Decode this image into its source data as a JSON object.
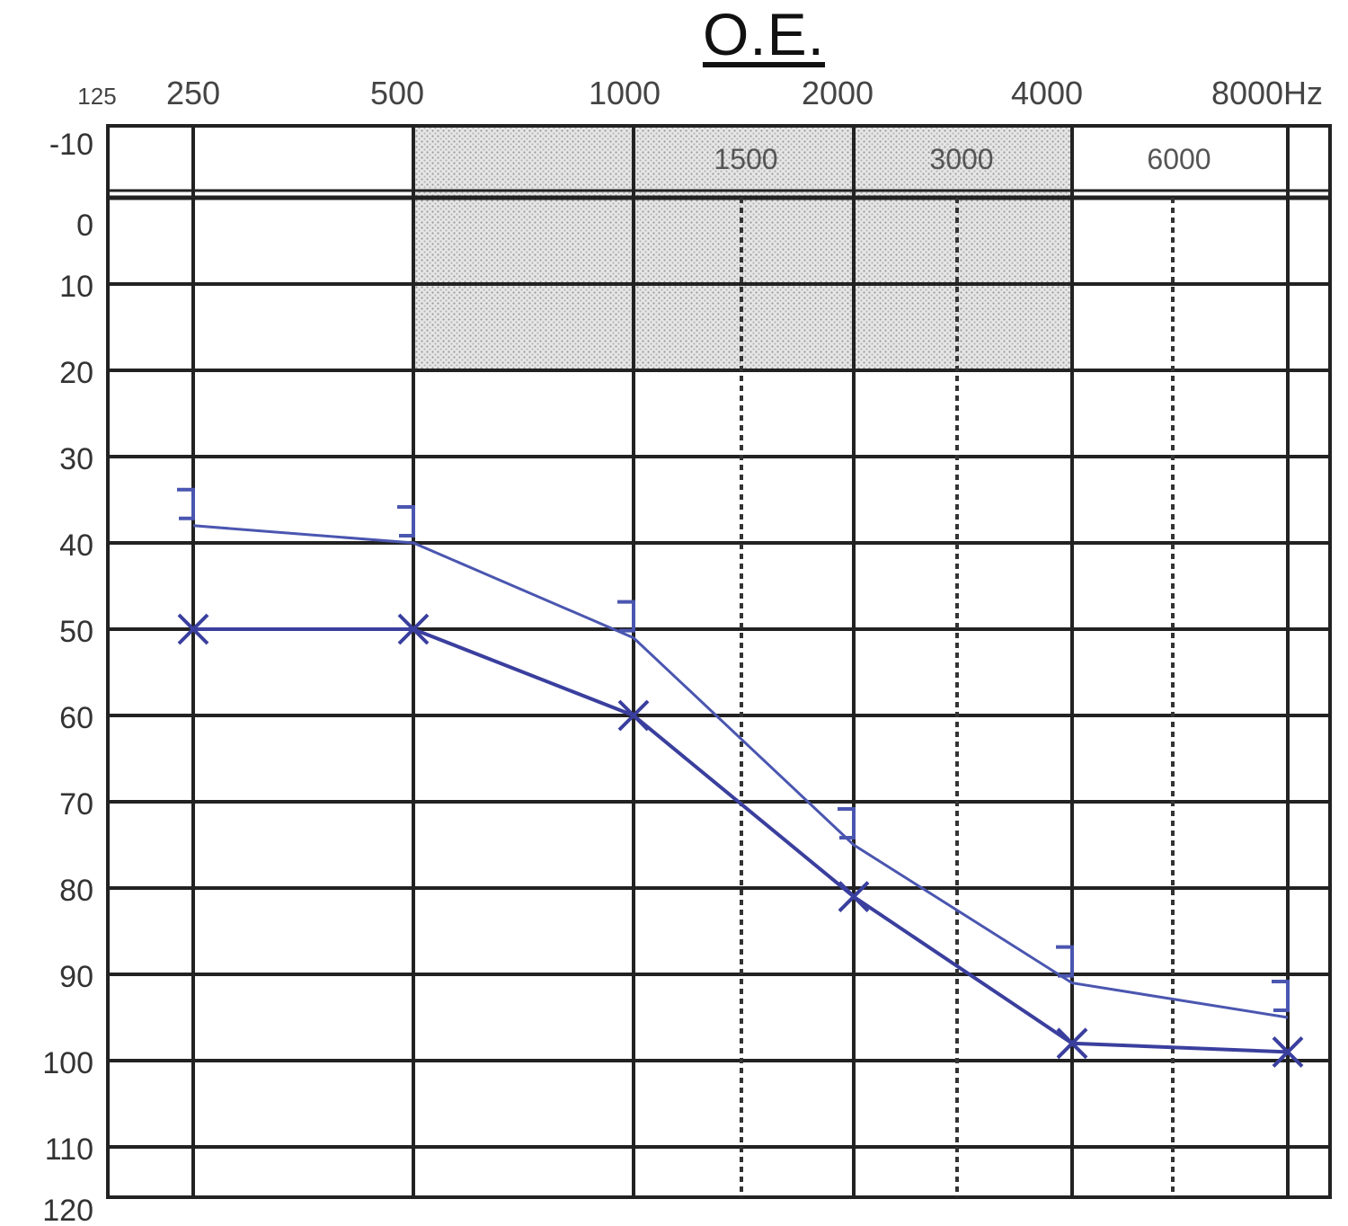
{
  "chart_data": {
    "type": "line",
    "title": "O.E.",
    "top_frequency_labels": [
      "125",
      "250",
      "500",
      "1000",
      "2000",
      "4000",
      "8000Hz"
    ],
    "inter_frequency_labels": [
      "1500",
      "3000",
      "6000"
    ],
    "db_labels": [
      "-10",
      "0",
      "10",
      "20",
      "30",
      "40",
      "50",
      "60",
      "70",
      "80",
      "90",
      "100",
      "110",
      "120"
    ],
    "x_frequencies": [
      250,
      500,
      1000,
      2000,
      4000,
      8000
    ],
    "ylim": [
      -10,
      120
    ],
    "y_inverted": true,
    "shaded_region": {
      "freq_from": 500,
      "freq_to": 4000,
      "db_from": -10,
      "db_to": 20
    },
    "series": [
      {
        "marker": "bracket",
        "color": "#4a56b0",
        "points": [
          [
            250,
            38
          ],
          [
            500,
            40
          ],
          [
            1000,
            51
          ],
          [
            2000,
            75
          ],
          [
            4000,
            91
          ],
          [
            8000,
            95
          ]
        ]
      },
      {
        "marker": "x",
        "color": "#3a3f9e",
        "points": [
          [
            250,
            50
          ],
          [
            500,
            50
          ],
          [
            1000,
            60
          ],
          [
            2000,
            81
          ],
          [
            4000,
            98
          ],
          [
            8000,
            99
          ]
        ]
      }
    ]
  }
}
